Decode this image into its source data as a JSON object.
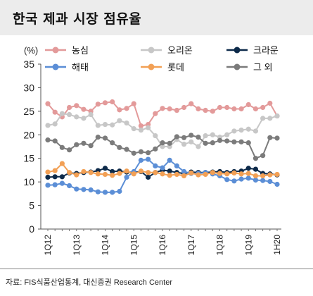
{
  "title": "한국 제과 시장 점유율",
  "source": "자료: FIS식품산업통계, 대신증권 Research Center",
  "chart_data": {
    "type": "line",
    "unit_label": "(%)",
    "ylim": [
      0,
      35
    ],
    "yticks": [
      0,
      5,
      10,
      15,
      20,
      25,
      30,
      35
    ],
    "grid": false,
    "legend_position": "top",
    "x": [
      "1Q12",
      "2Q12",
      "3Q12",
      "4Q12",
      "1Q13",
      "2Q13",
      "3Q13",
      "4Q13",
      "1Q14",
      "2Q14",
      "3Q14",
      "4Q14",
      "1Q15",
      "2Q15",
      "3Q15",
      "4Q15",
      "1Q16",
      "2Q16",
      "3Q16",
      "4Q16",
      "1Q17",
      "2Q17",
      "3Q17",
      "4Q17",
      "1Q18",
      "2Q18",
      "3Q18",
      "4Q18",
      "1Q19",
      "2Q19",
      "3Q19",
      "4Q19",
      "1H20"
    ],
    "xtick_labels": [
      "1Q12",
      "1Q13",
      "1Q14",
      "1Q15",
      "1Q16",
      "1Q17",
      "1Q18",
      "1Q19",
      "1H20"
    ],
    "series": [
      {
        "name": "농심",
        "color": "#e39a9a",
        "marker": "circle",
        "values": [
          26.6,
          24.8,
          23.8,
          25.8,
          26.2,
          25.4,
          25.0,
          26.5,
          26.8,
          27.0,
          25.3,
          25.6,
          26.6,
          21.9,
          22.2,
          24.5,
          25.6,
          25.5,
          25.2,
          25.8,
          26.6,
          25.5,
          25.2,
          25.0,
          25.8,
          25.8,
          25.5,
          25.5,
          26.4,
          25.5,
          25.8,
          26.7,
          24.0
        ]
      },
      {
        "name": "오리온",
        "color": "#c7c7c7",
        "marker": "circle",
        "values": [
          22.0,
          22.3,
          24.5,
          24.3,
          23.8,
          23.5,
          24.3,
          22.0,
          22.2,
          22.1,
          23.0,
          22.5,
          21.3,
          21.0,
          21.5,
          19.8,
          17.5,
          17.5,
          19.0,
          18.0,
          18.5,
          17.5,
          19.8,
          20.0,
          19.5,
          20.0,
          20.8,
          21.0,
          21.2,
          20.8,
          23.5,
          23.5,
          24.0
        ]
      },
      {
        "name": "크라운",
        "color": "#0d2a4a",
        "marker": "circle",
        "values": [
          11.0,
          11.1,
          11.1,
          11.9,
          11.8,
          12.0,
          12.1,
          12.4,
          12.9,
          12.2,
          12.3,
          12.1,
          12.0,
          12.2,
          11.0,
          12.0,
          12.5,
          12.3,
          12.0,
          11.8,
          12.1,
          12.0,
          12.0,
          12.1,
          12.2,
          12.0,
          12.2,
          12.3,
          12.9,
          12.7,
          11.8,
          11.7,
          11.5
        ]
      },
      {
        "name": "해태",
        "color": "#5b8ed6",
        "marker": "circle",
        "values": [
          9.3,
          9.4,
          9.7,
          9.2,
          8.5,
          8.4,
          8.3,
          7.9,
          7.8,
          7.8,
          8.0,
          11.0,
          12.2,
          14.6,
          14.8,
          13.4,
          13.0,
          14.6,
          13.4,
          12.2,
          11.8,
          11.8,
          12.0,
          11.7,
          11.3,
          10.5,
          10.2,
          10.6,
          10.8,
          10.4,
          10.3,
          10.1,
          9.5
        ]
      },
      {
        "name": "롯데",
        "color": "#f2a055",
        "marker": "circle",
        "values": [
          12.1,
          12.4,
          13.9,
          12.0,
          11.5,
          12.2,
          12.0,
          11.7,
          11.6,
          11.4,
          11.8,
          12.3,
          11.7,
          12.3,
          12.0,
          12.0,
          11.7,
          11.4,
          11.6,
          11.3,
          11.9,
          11.5,
          11.6,
          12.0,
          11.8,
          11.7,
          11.9,
          11.7,
          11.8,
          11.3,
          11.3,
          11.5,
          11.6
        ]
      },
      {
        "name": "그 외",
        "color": "#7b7b7b",
        "marker": "circle",
        "values": [
          18.9,
          18.7,
          17.3,
          16.8,
          17.9,
          18.2,
          17.7,
          19.5,
          19.3,
          18.3,
          17.3,
          16.9,
          16.1,
          16.4,
          16.2,
          17.0,
          18.3,
          18.2,
          19.6,
          19.4,
          19.9,
          19.5,
          18.2,
          18.3,
          18.8,
          18.7,
          18.5,
          18.5,
          18.3,
          15.0,
          15.6,
          19.4,
          19.3
        ]
      }
    ]
  }
}
